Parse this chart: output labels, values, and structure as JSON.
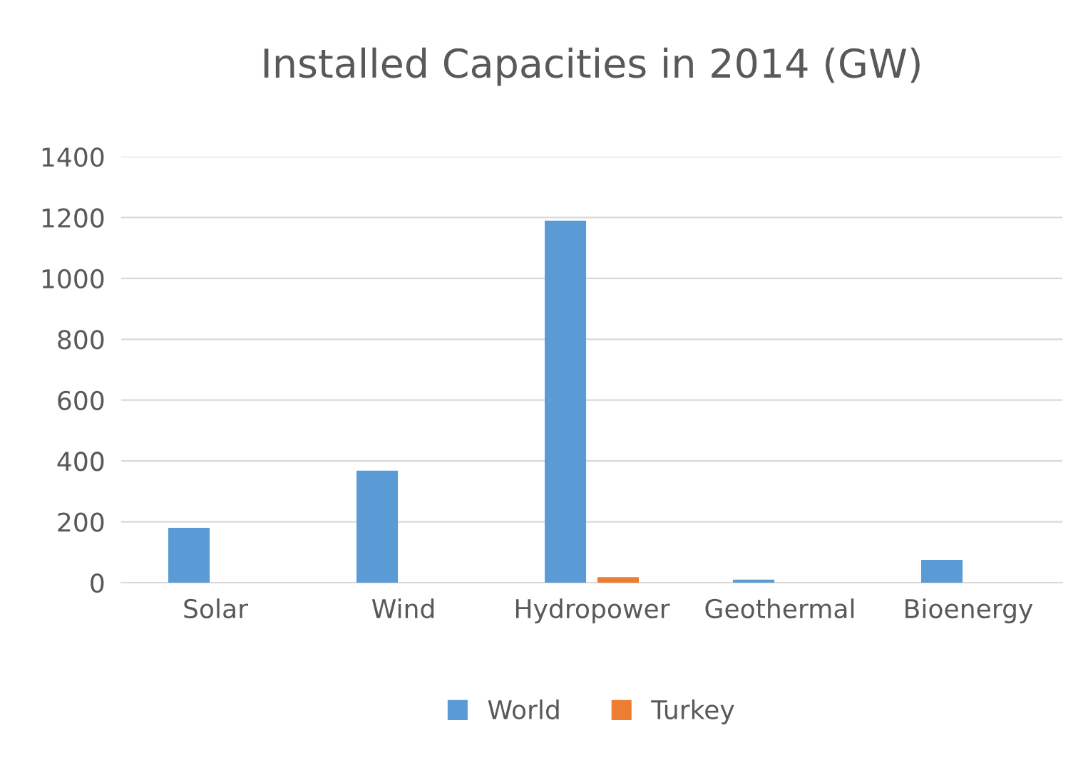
{
  "chart_data": {
    "type": "bar",
    "title": "Installed Capacities in 2014 (GW)",
    "categories": [
      "Solar",
      "Wind",
      "Hydropower",
      "Geothermal",
      "Bioenergy"
    ],
    "series": [
      {
        "name": "World",
        "color": "#5b9bd5",
        "values": [
          180,
          368,
          1190,
          10,
          75
        ]
      },
      {
        "name": "Turkey",
        "color": "#ed7d31",
        "values": [
          0,
          0,
          18,
          0,
          0
        ]
      }
    ],
    "ylim": [
      0,
      1400
    ],
    "yticks": [
      0,
      200,
      400,
      600,
      800,
      1000,
      1200,
      1400
    ],
    "grid": "y",
    "legend": "bottom"
  }
}
